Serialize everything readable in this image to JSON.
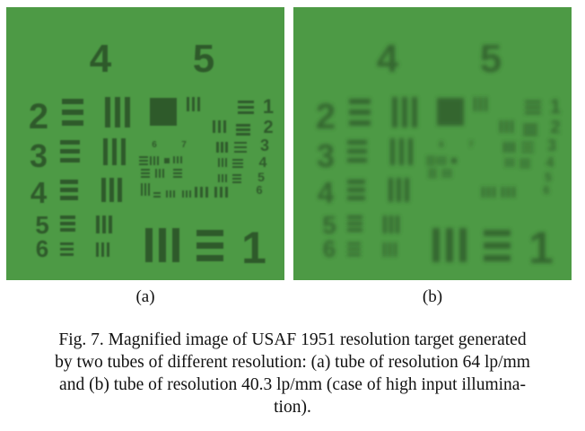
{
  "figure": {
    "panels": [
      {
        "id": "a",
        "label": "(a)",
        "target": {
          "group_numbers": [
            "4",
            "5"
          ],
          "element_numbers_left": [
            "2",
            "3",
            "4",
            "5",
            "6"
          ],
          "element_numbers_right": [
            "1",
            "2",
            "3",
            "4",
            "5",
            "6"
          ],
          "small_group_numbers": [
            "6",
            "7"
          ],
          "bottom_number": "1"
        },
        "blur": "low"
      },
      {
        "id": "b",
        "label": "(b)",
        "target": {
          "group_numbers": [
            "4",
            "5"
          ],
          "element_numbers_left": [
            "2",
            "3",
            "4",
            "5",
            "6"
          ],
          "element_numbers_right": [
            "1",
            "2",
            "3",
            "4",
            "5",
            "6"
          ],
          "small_group_numbers": [
            "6",
            "7"
          ],
          "bottom_number": "1"
        },
        "blur": "high"
      }
    ],
    "caption_lines": [
      "Fig. 7. Magnified image of USAF 1951 resolution target generated",
      "by two tubes of different resolution: (a) tube of resolution 64 lp/mm",
      "and (b) tube of resolution 40.3 lp/mm (case of high input illumina-",
      "tion)."
    ]
  },
  "colors": {
    "background_green": "#4d9a45",
    "pattern_dark": "#2f5a2a"
  }
}
